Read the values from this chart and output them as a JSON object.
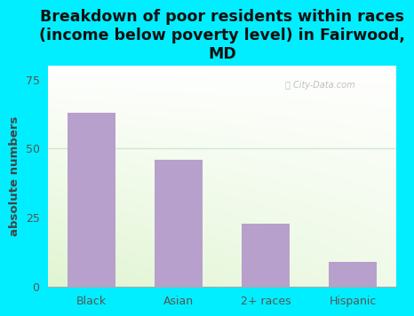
{
  "categories": [
    "Black",
    "Asian",
    "2+ races",
    "Hispanic"
  ],
  "values": [
    63,
    46,
    23,
    9
  ],
  "bar_color": "#b8a0cc",
  "title": "Breakdown of poor residents within races\n(income below poverty level) in Fairwood,\nMD",
  "ylabel": "absolute numbers",
  "ylim": [
    0,
    80
  ],
  "yticks": [
    0,
    25,
    50,
    75
  ],
  "background_color": "#00eeff",
  "plot_bg_topleft": "#d6ecc8",
  "plot_bg_topright": "#f0faff",
  "plot_bg_bottomright": "#ffffff",
  "plot_bg_bottomleft": "#e8f5e0",
  "grid_color": "#d0e8d0",
  "watermark": "City-Data.com",
  "title_fontsize": 12.5,
  "label_fontsize": 9.5,
  "tick_fontsize": 9,
  "title_color": "#111111",
  "label_color": "#444444",
  "tick_color": "#555555"
}
